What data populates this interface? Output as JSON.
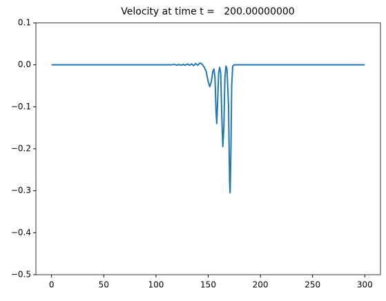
{
  "chart_data": {
    "type": "line",
    "title": "Velocity at time t =   200.00000000",
    "x": [
      0,
      100,
      115,
      118,
      120,
      122,
      124,
      126,
      128,
      130,
      132,
      134,
      136,
      138,
      140,
      142,
      144,
      146,
      148,
      150,
      151.5,
      153,
      154.5,
      155.5,
      156.5,
      157.5,
      158.2,
      159,
      160,
      161,
      162,
      163,
      164,
      165,
      166,
      167,
      168,
      169.5,
      170.5,
      171,
      171.8,
      172.5,
      173.5,
      175,
      200,
      250,
      300
    ],
    "series": [
      {
        "color": "#1f77b4",
        "values": [
          0,
          0,
          0,
          0.001,
          -0.001,
          0.001,
          -0.001,
          0.001,
          -0.001,
          0.002,
          -0.001,
          0.002,
          -0.002,
          0.003,
          -0.001,
          0.004,
          0.002,
          -0.005,
          -0.015,
          -0.04,
          -0.052,
          -0.04,
          -0.015,
          -0.01,
          -0.03,
          -0.11,
          -0.14,
          -0.09,
          -0.02,
          -0.006,
          -0.02,
          -0.12,
          -0.195,
          -0.15,
          -0.03,
          -0.003,
          -0.01,
          -0.1,
          -0.28,
          -0.305,
          -0.2,
          -0.05,
          -0.003,
          0,
          0,
          0,
          0
        ]
      }
    ],
    "xlim": [
      -15,
      315
    ],
    "ylim": [
      -0.5,
      0.1
    ],
    "xticks": [
      0,
      50,
      100,
      150,
      200,
      250,
      300
    ],
    "yticks": [
      {
        "value": -0.5,
        "label": "−0.5"
      },
      {
        "value": -0.4,
        "label": "−0.4"
      },
      {
        "value": -0.3,
        "label": "−0.3"
      },
      {
        "value": -0.2,
        "label": "−0.2"
      },
      {
        "value": -0.1,
        "label": "−0.1"
      },
      {
        "value": 0,
        "label": "0.0"
      },
      0.1
    ]
  }
}
